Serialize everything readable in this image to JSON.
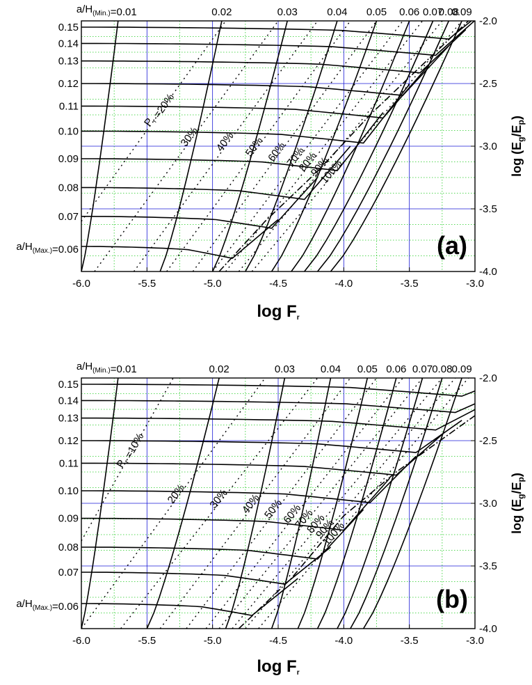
{
  "chart_data": [
    {
      "type": "line",
      "panel": "(a)",
      "xlabel": "log F",
      "xlabel_sub": "r",
      "ylabel": "log (E /E )",
      "ylabel_subs": [
        "g",
        "p"
      ],
      "xlim": [
        -6.0,
        -3.0
      ],
      "ylim": [
        -4.0,
        -2.0
      ],
      "x_ticks": [
        "-6.0",
        "-5.5",
        "-5.0",
        "-4.5",
        "-4.0",
        "-3.5",
        "-3.0"
      ],
      "y_ticks_right": [
        "-2.0",
        "-2.5",
        "-3.0",
        "-3.5",
        "-4.0"
      ],
      "left_labels": [
        "0.15",
        "0.14",
        "0.13",
        "0.12",
        "0.11",
        "0.10",
        "0.09",
        "0.08",
        "0.07"
      ],
      "left_label_levels": [
        0.15,
        0.14,
        0.13,
        0.12,
        0.11,
        0.1,
        0.09,
        0.08,
        0.07
      ],
      "left_max": {
        "prefix": "a/H",
        "sub": "(Max.)",
        "suffix": "=0.06"
      },
      "top_min": {
        "prefix": "a/H",
        "sub": "(Min.)",
        "suffix": "=0.01"
      },
      "top_labels": [
        "0.02",
        "0.03",
        "0.04",
        "0.05",
        "0.06",
        "0.07",
        "0.08",
        "0.09"
      ],
      "P_labels": [
        "P =20%",
        "30%",
        "40%",
        "50%",
        "60%",
        "70%",
        "80%",
        "90%",
        "100%"
      ],
      "P_first_sub": "r",
      "grid": true,
      "a_over_H_horizontal": [
        {
          "level": 0.15,
          "y0": -2.05,
          "x_end": -3.2
        },
        {
          "level": 0.14,
          "y0": -2.18,
          "x_end": -3.3
        },
        {
          "level": 0.13,
          "y0": -2.32,
          "x_end": -3.42
        },
        {
          "level": 0.12,
          "y0": -2.5,
          "x_end": -3.55
        },
        {
          "level": 0.11,
          "y0": -2.68,
          "x_end": -3.7
        },
        {
          "level": 0.1,
          "y0": -2.88,
          "x_end": -3.85
        },
        {
          "level": 0.09,
          "y0": -3.1,
          "x_end": -4.05
        },
        {
          "level": 0.08,
          "y0": -3.33,
          "x_end": -4.3
        },
        {
          "level": 0.07,
          "y0": -3.56,
          "x_end": -4.55
        },
        {
          "level": 0.06,
          "y0": -3.8,
          "x_end": -4.85
        }
      ],
      "a_over_H_diagonal": [
        {
          "level": 0.01,
          "x_bottom": -6.0,
          "x_top": -5.72
        },
        {
          "level": 0.02,
          "x_bottom": -5.4,
          "x_top": -4.93
        },
        {
          "level": 0.03,
          "x_bottom": -5.0,
          "x_top": -4.43
        },
        {
          "level": 0.04,
          "x_bottom": -4.75,
          "x_top": -4.05
        },
        {
          "level": 0.05,
          "x_bottom": -4.55,
          "x_top": -3.75
        },
        {
          "level": 0.06,
          "x_bottom": -4.4,
          "x_top": -3.5
        },
        {
          "level": 0.07,
          "x_bottom": -4.3,
          "x_top": -3.32
        },
        {
          "level": 0.08,
          "x_bottom": -4.2,
          "x_top": -3.2
        },
        {
          "level": 0.09,
          "x_bottom": -4.1,
          "x_top": -3.1
        }
      ],
      "envelope": [
        [
          -4.95,
          -4.0
        ],
        [
          -4.6,
          -3.6
        ],
        [
          -4.2,
          -3.2
        ],
        [
          -3.8,
          -2.75
        ],
        [
          -3.4,
          -2.35
        ],
        [
          -3.05,
          -2.0
        ]
      ],
      "P_lines": [
        {
          "label": "P =20%",
          "x_bottom": -6.0,
          "y_bottom": -3.6,
          "x_top": -4.9,
          "y_top": -2.0
        },
        {
          "label": "30%",
          "x_bottom": -5.9,
          "y_bottom": -4.0,
          "x_top": -4.5,
          "y_top": -2.0
        },
        {
          "label": "40%",
          "x_bottom": -5.6,
          "y_bottom": -4.0,
          "x_top": -4.2,
          "y_top": -2.0
        },
        {
          "label": "50%",
          "x_bottom": -5.35,
          "y_bottom": -4.0,
          "x_top": -3.95,
          "y_top": -2.0
        },
        {
          "label": "60%",
          "x_bottom": -5.15,
          "y_bottom": -4.0,
          "x_top": -3.75,
          "y_top": -2.0
        },
        {
          "label": "70%",
          "x_bottom": -5.0,
          "y_bottom": -4.0,
          "x_top": -3.55,
          "y_top": -2.0
        },
        {
          "label": "80%",
          "x_bottom": -4.9,
          "y_bottom": -4.0,
          "x_top": -3.4,
          "y_top": -2.0
        },
        {
          "label": "90%",
          "x_bottom": -4.8,
          "y_bottom": -4.0,
          "x_top": -3.25,
          "y_top": -2.0
        },
        {
          "label": "100%",
          "x_bottom": -4.7,
          "y_bottom": -4.0,
          "x_top": -3.1,
          "y_top": -2.0
        }
      ]
    },
    {
      "type": "line",
      "panel": "(b)",
      "xlabel": "log F",
      "xlabel_sub": "r",
      "ylabel": "log (E /E )",
      "ylabel_subs": [
        "g",
        "p"
      ],
      "xlim": [
        -6.0,
        -3.0
      ],
      "ylim": [
        -4.0,
        -2.0
      ],
      "x_ticks": [
        "-6.0",
        "-5.5",
        "-5.0",
        "-4.5",
        "-4.0",
        "-3.5",
        "-3.0"
      ],
      "y_ticks_right": [
        "-2.0",
        "-2.5",
        "-3.0",
        "-3.5",
        "-4.0"
      ],
      "left_labels": [
        "0.15",
        "0.14",
        "0.13",
        "0.12",
        "0.11",
        "0.10",
        "0.09",
        "0.08",
        "0.07"
      ],
      "left_label_levels": [
        0.15,
        0.14,
        0.13,
        0.12,
        0.11,
        0.1,
        0.09,
        0.08,
        0.07
      ],
      "left_max": {
        "prefix": "a/H",
        "sub": "(Max.)",
        "suffix": "=0.06"
      },
      "top_min": {
        "prefix": "a/H",
        "sub": "(Min.)",
        "suffix": "=0.01"
      },
      "top_labels": [
        "0.02",
        "0.03",
        "0.04",
        "0.05",
        "0.06",
        "0.07",
        "0.08",
        "0.09"
      ],
      "P_labels": [
        "P =10%",
        "20%",
        "30%",
        "40%",
        "50%",
        "60%",
        "70%",
        "80%",
        "90%",
        "100%"
      ],
      "P_first_sub": "r",
      "grid": true,
      "a_over_H_horizontal": [
        {
          "level": 0.15,
          "y0": -2.05,
          "x_end": -3.1
        },
        {
          "level": 0.14,
          "y0": -2.18,
          "x_end": -3.15
        },
        {
          "level": 0.13,
          "y0": -2.32,
          "x_end": -3.3
        },
        {
          "level": 0.12,
          "y0": -2.5,
          "x_end": -3.45
        },
        {
          "level": 0.11,
          "y0": -2.68,
          "x_end": -3.6
        },
        {
          "level": 0.1,
          "y0": -2.9,
          "x_end": -3.8
        },
        {
          "level": 0.09,
          "y0": -3.12,
          "x_end": -4.0
        },
        {
          "level": 0.08,
          "y0": -3.35,
          "x_end": -4.2
        },
        {
          "level": 0.07,
          "y0": -3.55,
          "x_end": -4.45
        },
        {
          "level": 0.06,
          "y0": -3.8,
          "x_end": -4.7
        }
      ],
      "a_over_H_diagonal": [
        {
          "level": 0.01,
          "x_bottom": -6.0,
          "x_top": -5.72
        },
        {
          "level": 0.02,
          "x_bottom": -5.5,
          "x_top": -4.95
        },
        {
          "level": 0.03,
          "x_bottom": -4.9,
          "x_top": -4.45
        },
        {
          "level": 0.04,
          "x_bottom": -4.55,
          "x_top": -4.1
        },
        {
          "level": 0.05,
          "x_bottom": -4.35,
          "x_top": -3.82
        },
        {
          "level": 0.06,
          "x_bottom": -4.2,
          "x_top": -3.6
        },
        {
          "level": 0.07,
          "x_bottom": -4.05,
          "x_top": -3.4
        },
        {
          "level": 0.08,
          "x_bottom": -3.95,
          "x_top": -3.25
        },
        {
          "level": 0.09,
          "x_bottom": -3.85,
          "x_top": -3.1
        }
      ],
      "envelope": [
        [
          -4.8,
          -4.0
        ],
        [
          -4.4,
          -3.6
        ],
        [
          -4.0,
          -3.1
        ],
        [
          -3.6,
          -2.75
        ],
        [
          -3.2,
          -2.45
        ],
        [
          -3.0,
          -2.3
        ]
      ],
      "P_lines": [
        {
          "label": "P =10%",
          "x_bottom": -6.0,
          "y_bottom": -3.3,
          "x_top": -5.3,
          "y_top": -2.0
        },
        {
          "label": "20%",
          "x_bottom": -6.0,
          "y_bottom": -4.0,
          "x_top": -4.6,
          "y_top": -2.0
        },
        {
          "label": "30%",
          "x_bottom": -5.7,
          "y_bottom": -4.0,
          "x_top": -4.2,
          "y_top": -2.0
        },
        {
          "label": "40%",
          "x_bottom": -5.4,
          "y_bottom": -4.0,
          "x_top": -3.95,
          "y_top": -2.0
        },
        {
          "label": "50%",
          "x_bottom": -5.2,
          "y_bottom": -4.0,
          "x_top": -3.75,
          "y_top": -2.0
        },
        {
          "label": "60%",
          "x_bottom": -5.05,
          "y_bottom": -4.0,
          "x_top": -3.55,
          "y_top": -2.0
        },
        {
          "label": "70%",
          "x_bottom": -4.95,
          "y_bottom": -4.0,
          "x_top": -3.4,
          "y_top": -2.0
        },
        {
          "label": "80%",
          "x_bottom": -4.85,
          "y_bottom": -4.0,
          "x_top": -3.25,
          "y_top": -2.0
        },
        {
          "label": "90%",
          "x_bottom": -4.75,
          "y_bottom": -4.0,
          "x_top": -3.15,
          "y_top": -2.0
        },
        {
          "label": "100%",
          "x_bottom": -4.65,
          "y_bottom": -4.0,
          "x_top": -3.05,
          "y_top": -2.0
        }
      ]
    }
  ]
}
